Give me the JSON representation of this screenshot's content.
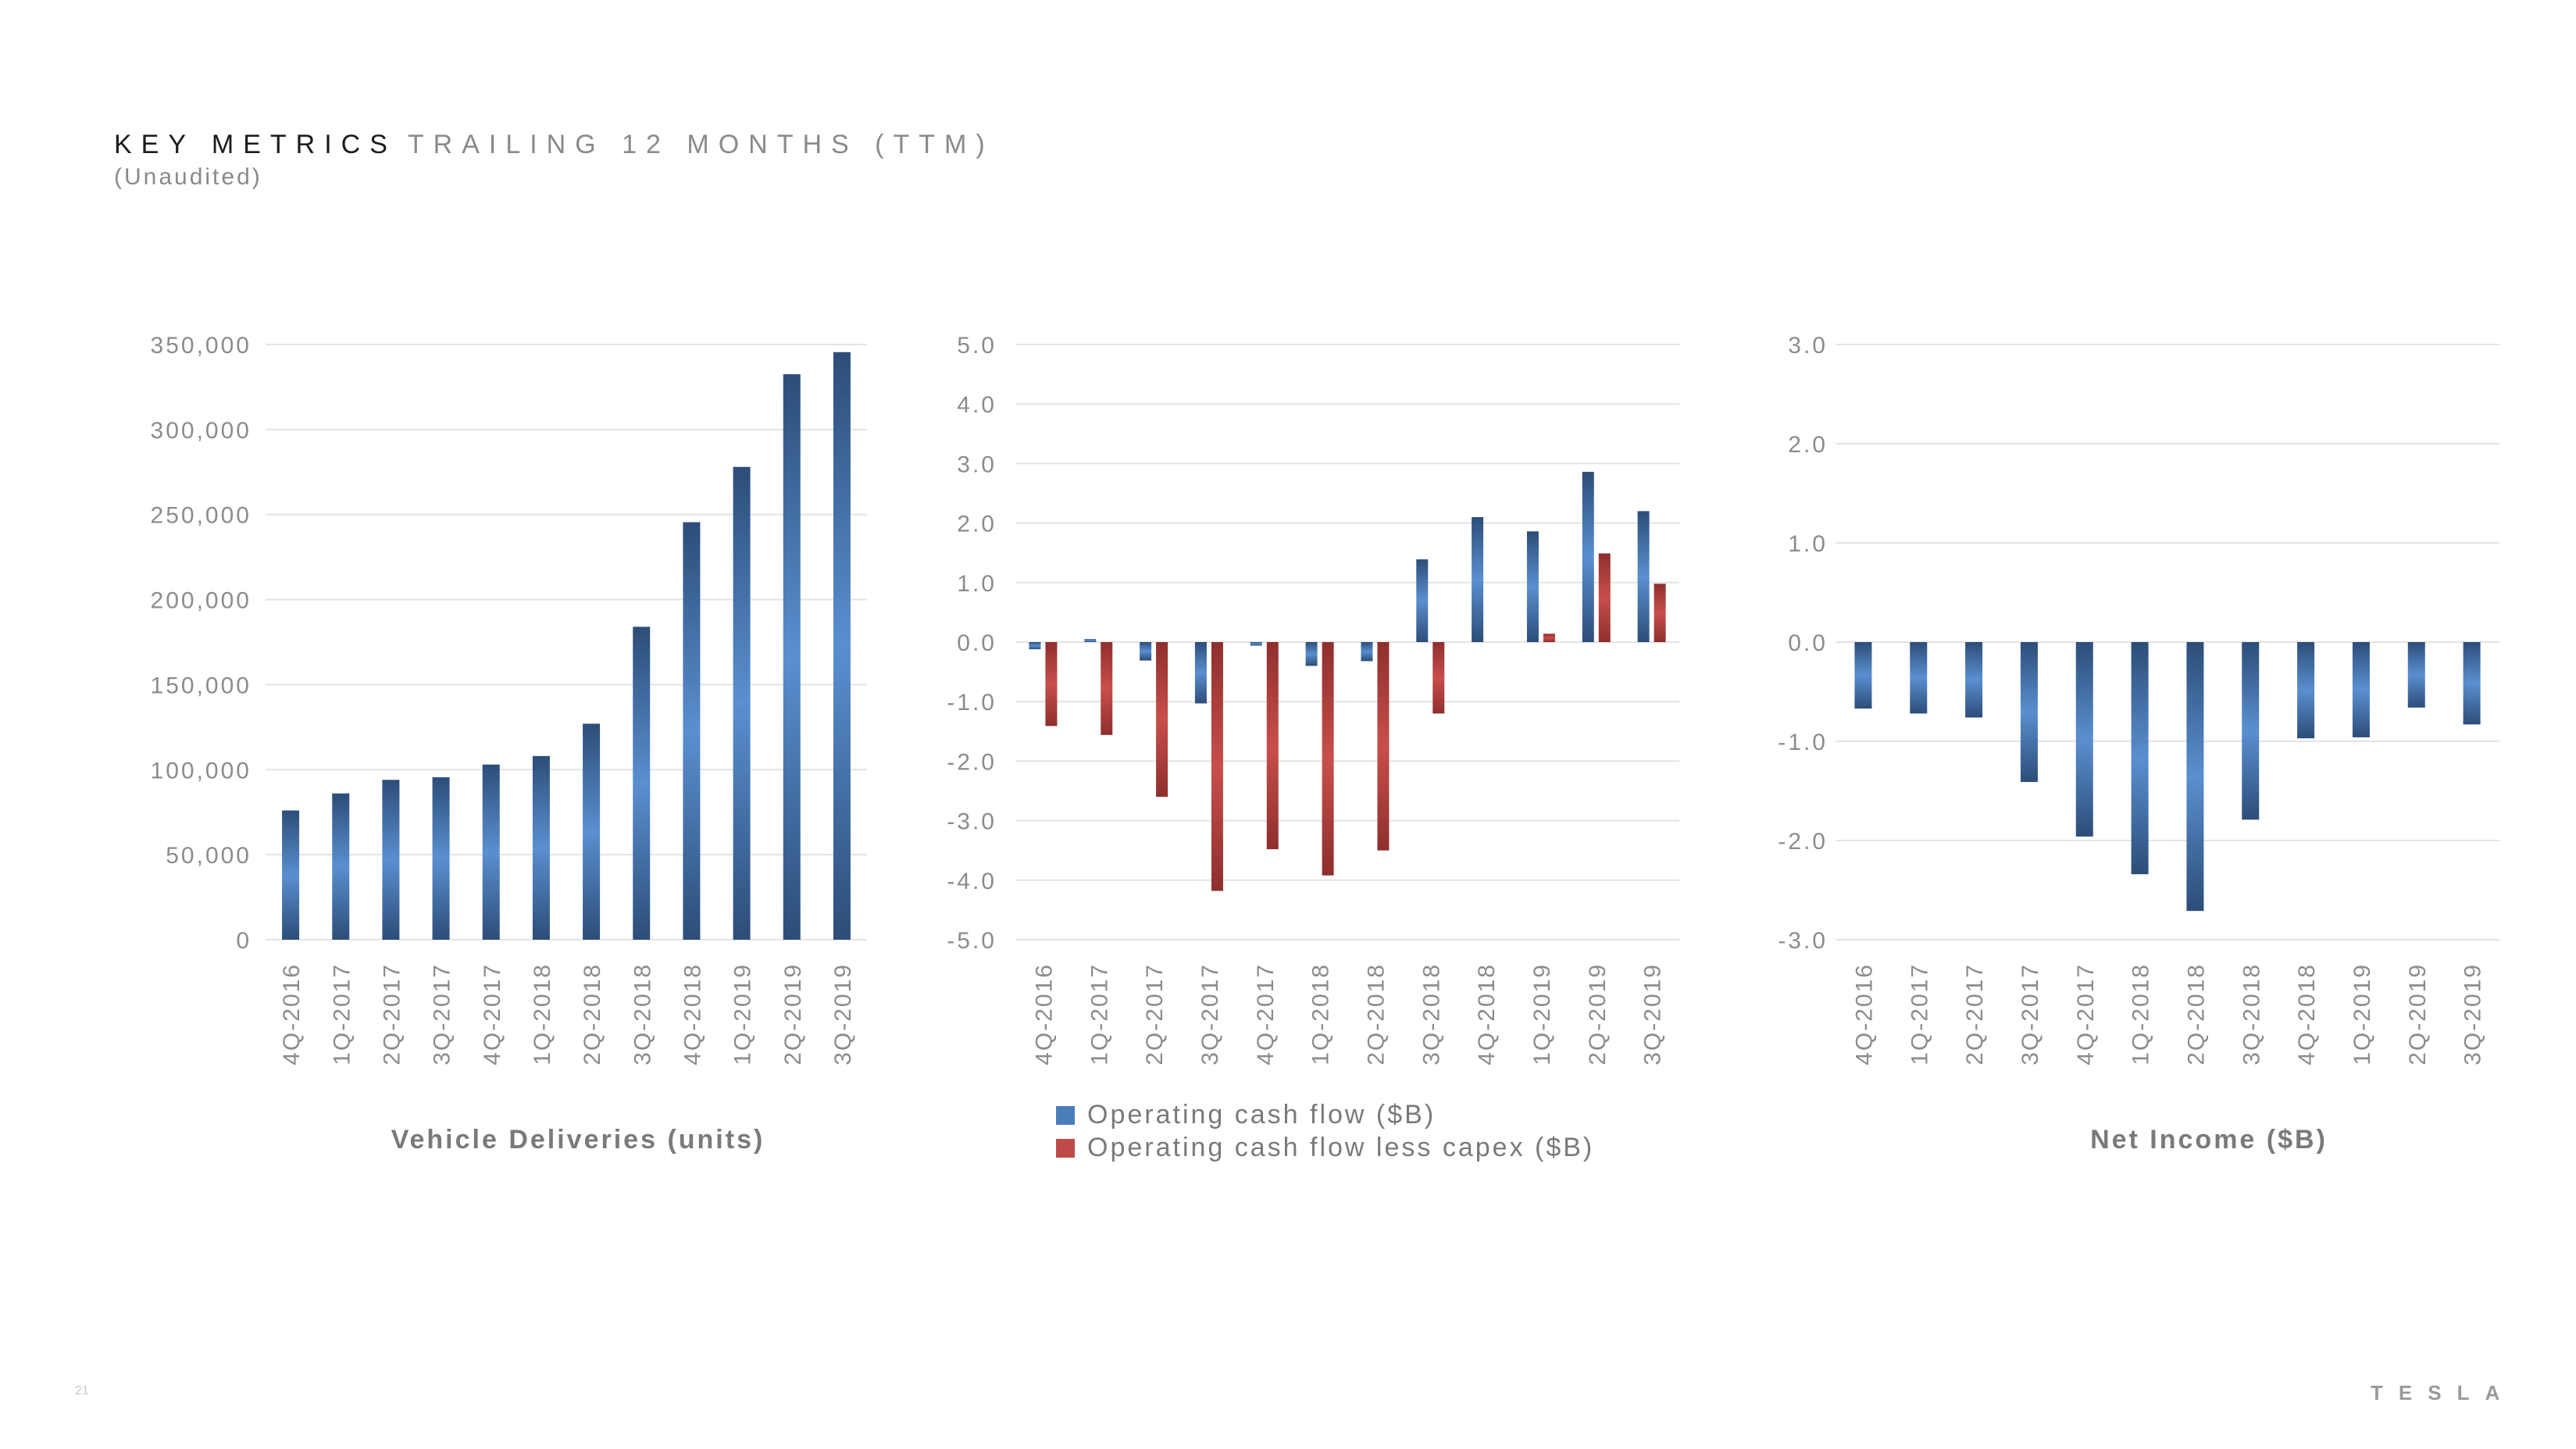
{
  "header": {
    "title_main": "KEY METRICS",
    "title_sub": "TRAILING 12 MONTHS (TTM)",
    "subtitle": "(Unaudited)"
  },
  "footer": {
    "page_number": "21",
    "brand": "TESLA"
  },
  "colors": {
    "blue": "#4a7ebb",
    "red": "#be4b48",
    "grid": "#e3e3e3",
    "text": "#8c8c8c"
  },
  "chart_data": [
    {
      "type": "bar",
      "title": "Vehicle Deliveries (units)",
      "categories": [
        "4Q-2016",
        "1Q-2017",
        "2Q-2017",
        "3Q-2017",
        "4Q-2017",
        "1Q-2018",
        "2Q-2018",
        "3Q-2018",
        "4Q-2018",
        "1Q-2019",
        "2Q-2019",
        "3Q-2019"
      ],
      "series": [
        {
          "values": [
            76000,
            86000,
            94000,
            95500,
            103000,
            108000,
            127000,
            184000,
            245500,
            278000,
            332500,
            345500
          ]
        }
      ],
      "ylim": [
        0,
        350000
      ],
      "yticks": [
        "0",
        "50,000",
        "100,000",
        "150,000",
        "200,000",
        "250,000",
        "300,000",
        "350,000"
      ],
      "grid": true
    },
    {
      "type": "bar",
      "title": "",
      "categories": [
        "4Q-2016",
        "1Q-2017",
        "2Q-2017",
        "3Q-2017",
        "4Q-2017",
        "1Q-2018",
        "2Q-2018",
        "3Q-2018",
        "4Q-2018",
        "1Q-2019",
        "2Q-2019",
        "3Q-2019"
      ],
      "series": [
        {
          "name": "Operating cash flow ($B)",
          "values": [
            -0.12,
            0.05,
            -0.31,
            -1.03,
            -0.06,
            -0.4,
            -0.32,
            1.39,
            2.1,
            1.86,
            2.86,
            2.2
          ]
        },
        {
          "name": "Operating cash flow less capex ($B)",
          "values": [
            -1.41,
            -1.56,
            -2.6,
            -4.18,
            -3.48,
            -3.92,
            -3.5,
            -1.2,
            0.0,
            0.14,
            1.49,
            0.98
          ]
        }
      ],
      "ylim": [
        -5.0,
        5.0
      ],
      "yticks": [
        "-5.0",
        "-4.0",
        "-3.0",
        "-2.0",
        "-1.0",
        "0.0",
        "1.0",
        "2.0",
        "3.0",
        "4.0",
        "5.0"
      ],
      "legend": "bottom",
      "grid": true
    },
    {
      "type": "bar",
      "title": "Net Income ($B)",
      "categories": [
        "4Q-2016",
        "1Q-2017",
        "2Q-2017",
        "3Q-2017",
        "4Q-2017",
        "1Q-2018",
        "2Q-2018",
        "3Q-2018",
        "4Q-2018",
        "1Q-2019",
        "2Q-2019",
        "3Q-2019"
      ],
      "series": [
        {
          "values": [
            -0.67,
            -0.72,
            -0.76,
            -1.41,
            -1.96,
            -2.34,
            -2.71,
            -1.79,
            -0.97,
            -0.96,
            -0.66,
            -0.83
          ]
        }
      ],
      "ylim": [
        -3.0,
        3.0
      ],
      "yticks": [
        "-3.0",
        "-2.0",
        "-1.0",
        "0.0",
        "1.0",
        "2.0",
        "3.0"
      ],
      "grid": true
    }
  ]
}
